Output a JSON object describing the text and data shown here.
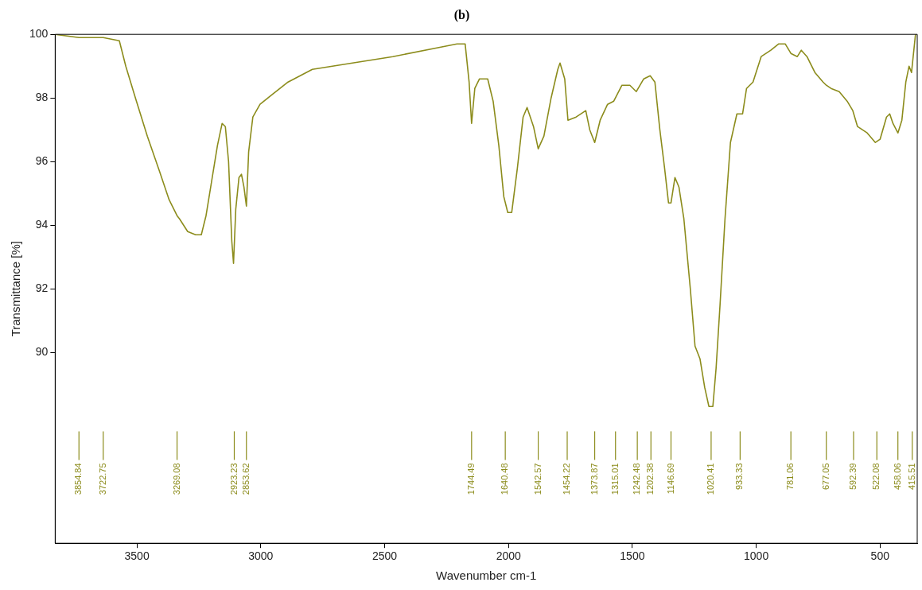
{
  "chart_data": {
    "type": "line",
    "title": "(b)",
    "xlabel": "Wavenumber cm-1",
    "ylabel": "Transmittance [%]",
    "xlim": [
      3830,
      350
    ],
    "xticks": [
      3500,
      3000,
      2500,
      2000,
      1500,
      1000,
      500
    ],
    "ylim": [
      84,
      100
    ],
    "yticks": [
      90,
      92,
      94,
      96,
      98,
      100
    ],
    "grid": false,
    "legend": false,
    "series": [
      {
        "color": "#8c8c1c",
        "x": [
          3830,
          3734,
          3636,
          3571,
          3545,
          3506,
          3458,
          3409,
          3370,
          3338,
          3328,
          3295,
          3263,
          3240,
          3221,
          3198,
          3175,
          3156,
          3143,
          3130,
          3117,
          3110,
          3101,
          3088,
          3078,
          3068,
          3058,
          3049,
          3032,
          3003,
          2955,
          2890,
          2792,
          2630,
          2467,
          2273,
          2208,
          2175,
          2159,
          2149,
          2136,
          2117,
          2084,
          2062,
          2039,
          2019,
          2003,
          1987,
          1964,
          1941,
          1925,
          1899,
          1880,
          1857,
          1828,
          1801,
          1792,
          1773,
          1760,
          1727,
          1688,
          1672,
          1652,
          1630,
          1600,
          1575,
          1542,
          1510,
          1484,
          1454,
          1428,
          1409,
          1389,
          1370,
          1354,
          1344,
          1328,
          1312,
          1292,
          1266,
          1247,
          1227,
          1208,
          1191,
          1175,
          1162,
          1146,
          1126,
          1104,
          1078,
          1065,
          1055,
          1039,
          1013,
          980,
          941,
          909,
          883,
          860,
          834,
          818,
          795,
          763,
          730,
          717,
          698,
          665,
          633,
          610,
          591,
          552,
          519,
          500,
          474,
          461,
          448,
          428,
          412,
          396,
          383,
          373,
          357
        ],
        "values": [
          100,
          99.9,
          99.9,
          99.8,
          99.0,
          98.0,
          96.8,
          95.7,
          94.8,
          94.3,
          94.2,
          93.8,
          93.7,
          93.7,
          94.3,
          95.4,
          96.5,
          97.2,
          97.1,
          96.0,
          93.5,
          92.8,
          94.5,
          95.5,
          95.6,
          95.2,
          94.6,
          96.3,
          97.4,
          97.8,
          98.1,
          98.5,
          98.9,
          99.1,
          99.3,
          99.6,
          99.7,
          99.7,
          98.5,
          97.2,
          98.3,
          98.6,
          98.6,
          97.9,
          96.5,
          94.9,
          94.4,
          94.4,
          95.8,
          97.4,
          97.7,
          97.1,
          96.4,
          96.8,
          98.0,
          98.9,
          99.1,
          98.6,
          97.3,
          97.4,
          97.6,
          97.0,
          96.6,
          97.3,
          97.8,
          97.9,
          98.4,
          98.4,
          98.2,
          98.6,
          98.7,
          98.5,
          97.0,
          95.8,
          94.7,
          94.7,
          95.5,
          95.2,
          94.2,
          92.0,
          90.2,
          89.8,
          88.9,
          88.3,
          88.3,
          89.5,
          91.5,
          94.2,
          96.6,
          97.5,
          97.5,
          97.5,
          98.3,
          98.5,
          99.3,
          99.5,
          99.7,
          99.7,
          99.4,
          99.3,
          99.5,
          99.3,
          98.8,
          98.5,
          98.4,
          98.3,
          98.2,
          97.9,
          97.6,
          97.1,
          96.9,
          96.6,
          96.7,
          97.4,
          97.5,
          97.2,
          96.9,
          97.3,
          98.5,
          99.0,
          98.8,
          100.0
        ]
      }
    ],
    "annotations": [
      {
        "text": "3854.84",
        "x": 3734
      },
      {
        "text": "3722.75",
        "x": 3636
      },
      {
        "text": "3269.08",
        "x": 3338
      },
      {
        "text": "2923.23",
        "x": 3107
      },
      {
        "text": "2853.62",
        "x": 3058
      },
      {
        "text": "1744.49",
        "x": 2149
      },
      {
        "text": "1640.48",
        "x": 2013
      },
      {
        "text": "1542.57",
        "x": 1880
      },
      {
        "text": "1454.22",
        "x": 1763
      },
      {
        "text": "1373.87",
        "x": 1652
      },
      {
        "text": "1315.01",
        "x": 1568
      },
      {
        "text": "1242.48",
        "x": 1480
      },
      {
        "text": "1202.38",
        "x": 1425
      },
      {
        "text": "1146.69",
        "x": 1344
      },
      {
        "text": "1020.41",
        "x": 1182
      },
      {
        "text": "933.33",
        "x": 1065
      },
      {
        "text": "781.06",
        "x": 860
      },
      {
        "text": "677.05",
        "x": 717
      },
      {
        "text": "592.39",
        "x": 607
      },
      {
        "text": "522.08",
        "x": 513
      },
      {
        "text": "458.06",
        "x": 428
      },
      {
        "text": "415.51",
        "x": 370
      }
    ]
  }
}
